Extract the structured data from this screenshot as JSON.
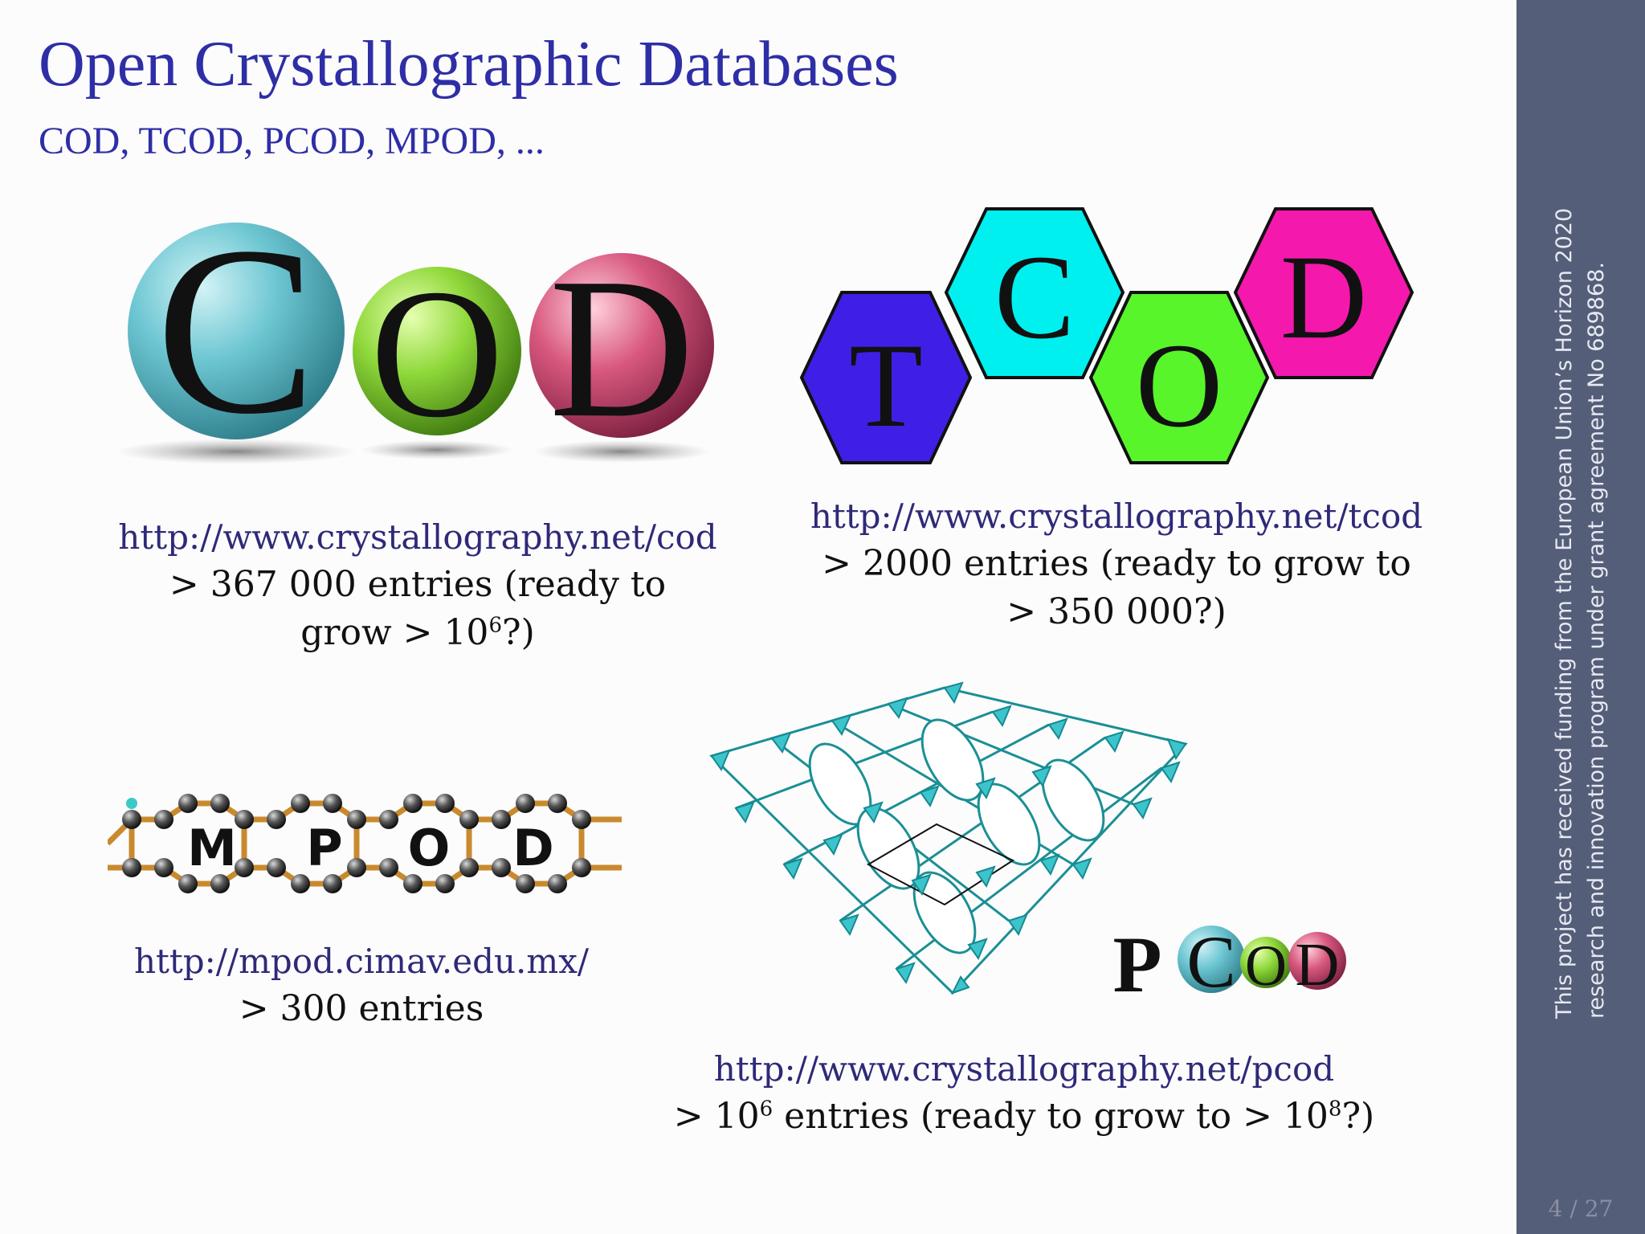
{
  "title": "Open Crystallographic Databases",
  "subtitle": "COD, TCOD, PCOD, MPOD, ...",
  "cod": {
    "logo_letters": [
      "C",
      "O",
      "D"
    ],
    "url": "http://www.crystallography.net/cod",
    "line1": "> 367 000 entries (ready to",
    "line2_pre": "grow > 10",
    "line2_sup": "6",
    "line2_post": "?)"
  },
  "tcod": {
    "logo_letters": [
      "T",
      "C",
      "O",
      "D"
    ],
    "url": "http://www.crystallography.net/tcod",
    "line1": "> 2000 entries (ready to grow to",
    "line2": "> 350 000?)"
  },
  "mpod": {
    "logo_letters": [
      "M",
      "P",
      "O",
      "D"
    ],
    "url": "http://mpod.cimav.edu.mx/",
    "line1": "> 300 entries"
  },
  "pcod": {
    "logo_letters": [
      "P",
      "C",
      "O",
      "D"
    ],
    "url": "http://www.crystallography.net/pcod",
    "line_pre": "> 10",
    "line_sup1": "6",
    "line_mid": " entries (ready to grow to > 10",
    "line_sup2": "8",
    "line_post": "?)"
  },
  "sidebar": {
    "funding_line1": "This project has received funding from the European Union’s Horizon 2020",
    "funding_line2": "research and innovation program under grant agreement No 689868.",
    "page_number": "4 / 27"
  },
  "colors": {
    "title": "#2e2ea6",
    "url": "#2e2a78",
    "sidebar": "#555e78",
    "cod_c": "#6cc6d2",
    "cod_o": "#8fd83a",
    "cod_d": "#d8587e",
    "tcod_t": "#3f1fe6",
    "tcod_c": "#00f0f0",
    "tcod_o": "#57f52a",
    "tcod_d": "#f518ad"
  }
}
